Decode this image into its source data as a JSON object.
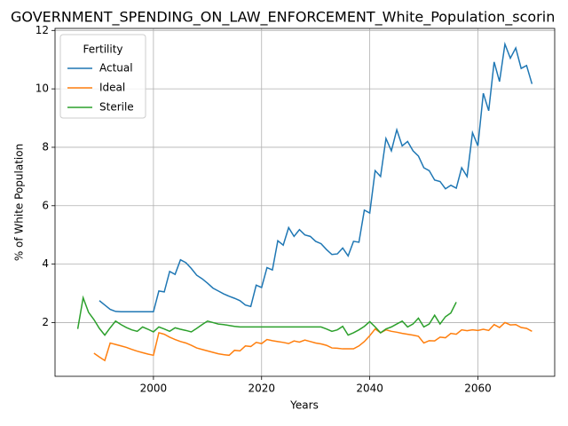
{
  "chart_data": {
    "type": "line",
    "title": "GOVERNMENT_SPENDING_ON_LAW_ENFORCEMENT_White_Population_scorin",
    "x_label": "Years",
    "y_label": "% of White Population",
    "legend_title": "Fertility",
    "legend": "upper left",
    "grid": true,
    "x": [
      1986,
      1987,
      1988,
      1989,
      1990,
      1991,
      1992,
      1993,
      1994,
      1995,
      1996,
      1997,
      1998,
      1999,
      2000,
      2001,
      2002,
      2003,
      2004,
      2005,
      2006,
      2007,
      2008,
      2009,
      2010,
      2011,
      2012,
      2013,
      2014,
      2015,
      2016,
      2017,
      2018,
      2019,
      2020,
      2021,
      2022,
      2023,
      2024,
      2025,
      2026,
      2027,
      2028,
      2029,
      2030,
      2031,
      2032,
      2033,
      2034,
      2035,
      2036,
      2037,
      2038,
      2039,
      2040,
      2041,
      2042,
      2043,
      2044,
      2045,
      2046,
      2047,
      2048,
      2049,
      2050,
      2051,
      2052,
      2053,
      2054,
      2055,
      2056,
      2057,
      2058,
      2059,
      2060,
      2061,
      2062,
      2063,
      2064,
      2065,
      2066,
      2067,
      2068,
      2069,
      2070
    ],
    "series": [
      {
        "name": "Actual",
        "color": "#1f77b4",
        "values": [
          null,
          null,
          null,
          null,
          2.75,
          2.6,
          2.45,
          2.38,
          2.37,
          2.37,
          2.37,
          2.37,
          2.37,
          2.37,
          2.37,
          3.08,
          3.05,
          3.75,
          3.65,
          4.15,
          4.05,
          3.85,
          3.62,
          3.5,
          3.35,
          3.18,
          3.08,
          2.98,
          2.9,
          2.83,
          2.75,
          2.6,
          2.55,
          3.28,
          3.2,
          3.88,
          3.8,
          4.8,
          4.65,
          5.25,
          4.95,
          5.18,
          5.0,
          4.95,
          4.78,
          4.7,
          4.5,
          4.33,
          4.35,
          4.55,
          4.28,
          4.78,
          4.75,
          5.85,
          5.75,
          7.2,
          7.0,
          8.3,
          7.88,
          8.6,
          8.05,
          8.2,
          7.88,
          7.7,
          7.3,
          7.2,
          6.88,
          6.83,
          6.58,
          6.7,
          6.6,
          7.3,
          7.0,
          8.5,
          8.05,
          9.85,
          9.25,
          10.92,
          10.25,
          11.53,
          11.05,
          11.4,
          10.7,
          10.8,
          10.17
        ]
      },
      {
        "name": "Ideal",
        "color": "#ff7f0e",
        "values": [
          null,
          null,
          null,
          0.95,
          0.82,
          0.7,
          1.3,
          1.25,
          1.2,
          1.15,
          1.08,
          1.02,
          0.97,
          0.92,
          0.88,
          1.65,
          1.6,
          1.5,
          1.42,
          1.35,
          1.3,
          1.22,
          1.13,
          1.08,
          1.03,
          0.98,
          0.93,
          0.9,
          0.88,
          1.05,
          1.03,
          1.2,
          1.18,
          1.32,
          1.28,
          1.42,
          1.38,
          1.35,
          1.32,
          1.28,
          1.37,
          1.33,
          1.4,
          1.35,
          1.3,
          1.27,
          1.22,
          1.13,
          1.12,
          1.1,
          1.1,
          1.1,
          1.2,
          1.35,
          1.55,
          1.78,
          1.65,
          1.75,
          1.7,
          1.67,
          1.63,
          1.6,
          1.57,
          1.53,
          1.3,
          1.38,
          1.37,
          1.5,
          1.48,
          1.63,
          1.6,
          1.75,
          1.72,
          1.75,
          1.73,
          1.77,
          1.73,
          1.93,
          1.83,
          2.0,
          1.92,
          1.93,
          1.83,
          1.8,
          1.7
        ]
      },
      {
        "name": "Sterile",
        "color": "#2ca02c",
        "values": [
          1.78,
          2.85,
          2.35,
          2.1,
          1.8,
          1.57,
          1.82,
          2.05,
          1.93,
          1.83,
          1.75,
          1.7,
          1.85,
          1.77,
          1.68,
          1.85,
          1.78,
          1.7,
          1.82,
          1.77,
          1.73,
          1.68,
          1.8,
          1.93,
          2.05,
          2.0,
          1.95,
          1.93,
          1.9,
          1.87,
          1.85,
          1.85,
          1.85,
          1.85,
          1.85,
          1.85,
          1.85,
          1.85,
          1.85,
          1.85,
          1.85,
          1.85,
          1.85,
          1.85,
          1.85,
          1.85,
          1.78,
          1.7,
          1.75,
          1.87,
          1.57,
          1.65,
          1.75,
          1.87,
          2.03,
          1.85,
          1.65,
          1.78,
          1.85,
          1.95,
          2.05,
          1.85,
          1.95,
          2.15,
          1.85,
          1.95,
          2.25,
          1.95,
          2.2,
          2.33,
          2.7,
          null,
          null,
          null,
          null,
          null,
          null,
          null,
          null,
          null,
          null,
          null,
          null,
          null,
          null
        ]
      }
    ],
    "xlim": [
      1981.8,
      2074.2
    ],
    "xticks": [
      2000,
      2020,
      2040,
      2060
    ],
    "ylim": [
      0.16,
      12.07
    ],
    "yticks": [
      2,
      4,
      6,
      8,
      10,
      12
    ]
  }
}
